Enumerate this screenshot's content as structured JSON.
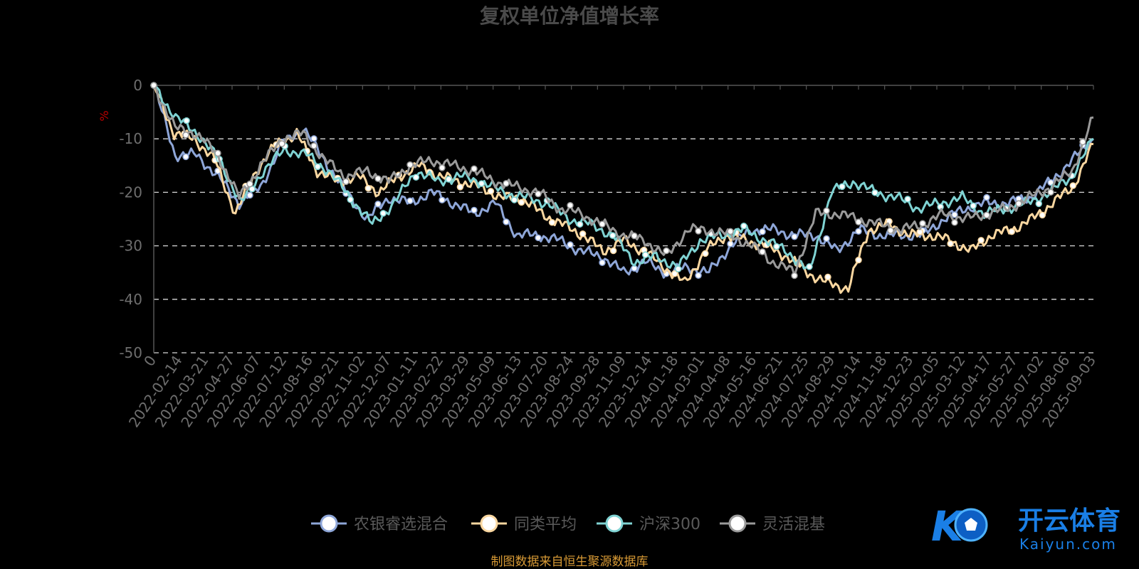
{
  "chart_data": {
    "type": "line",
    "title": "复权单位净值增长率",
    "ylabel": "%",
    "ylim": [
      -50,
      0
    ],
    "yticks": [
      0,
      -10,
      -20,
      -30,
      -40,
      -50
    ],
    "xticks": [
      "0",
      "2022-02-14",
      "2022-03-21",
      "2022-04-27",
      "2022-06-07",
      "2022-07-12",
      "2022-08-16",
      "2022-09-21",
      "2022-11-02",
      "2022-12-07",
      "2023-01-11",
      "2023-02-22",
      "2023-03-29",
      "2023-05-09",
      "2023-06-13",
      "2023-07-20",
      "2023-08-24",
      "2023-09-28",
      "2023-11-09",
      "2023-12-14",
      "2024-01-18",
      "2024-03-01",
      "2024-04-08",
      "2024-05-16",
      "2024-06-21",
      "2024-07-25",
      "2024-08-29",
      "2024-10-14",
      "2024-11-18",
      "2024-12-23",
      "2025-02-05",
      "2025-03-12",
      "2025-04-17",
      "2025-05-27",
      "2025-07-02",
      "2025-08-06",
      "2025-09-03"
    ],
    "grid": true,
    "legend_position": "bottom",
    "series": [
      {
        "name": "农银睿选混合",
        "color": "#8ea6d8",
        "values": [
          0,
          -13,
          -13,
          -17,
          -22,
          -19,
          -11,
          -8,
          -14,
          -20,
          -25,
          -21,
          -22,
          -20,
          -22,
          -24,
          -22,
          -28,
          -28,
          -29,
          -31,
          -32,
          -35,
          -33,
          -35,
          -34,
          -35,
          -30,
          -27,
          -27,
          -28,
          -28,
          -31,
          -27,
          -28,
          -28,
          -28,
          -25,
          -23,
          -22,
          -22,
          -21,
          -18,
          -14,
          -10
        ]
      },
      {
        "name": "同类平均",
        "color": "#fad7a0",
        "values": [
          0,
          -9,
          -10,
          -14,
          -24,
          -16,
          -11,
          -9,
          -16,
          -18,
          -17,
          -20,
          -17,
          -15,
          -17,
          -18,
          -19,
          -21,
          -21,
          -24,
          -26,
          -28,
          -31,
          -29,
          -31,
          -34,
          -37,
          -31,
          -28,
          -29,
          -30,
          -32,
          -35,
          -37,
          -38,
          -27,
          -26,
          -28,
          -28,
          -29,
          -31,
          -28,
          -27,
          -25,
          -22,
          -19,
          -11
        ]
      },
      {
        "name": "沪深300",
        "color": "#7fd3d3",
        "values": [
          0,
          -6,
          -9,
          -14,
          -22,
          -16,
          -12,
          -13,
          -16,
          -21,
          -26,
          -22,
          -16,
          -18,
          -17,
          -18,
          -20,
          -21,
          -22,
          -25,
          -26,
          -28,
          -33,
          -32,
          -34,
          -29,
          -28,
          -27,
          -29,
          -31,
          -35,
          -20,
          -18,
          -20,
          -21,
          -23,
          -22,
          -21,
          -24,
          -23,
          -22,
          -20,
          -17,
          -10
        ]
      },
      {
        "name": "灵活混基",
        "color": "#9a9a9a",
        "values": [
          0,
          -8,
          -9,
          -13,
          -21,
          -15,
          -10,
          -9,
          -14,
          -17,
          -16,
          -18,
          -15,
          -14,
          -15,
          -16,
          -18,
          -19,
          -20,
          -23,
          -24,
          -26,
          -28,
          -29,
          -32,
          -27,
          -27,
          -28,
          -30,
          -33,
          -35,
          -24,
          -24,
          -25,
          -26,
          -27,
          -26,
          -24,
          -25,
          -24,
          -23,
          -21,
          -19,
          -16,
          -6
        ]
      }
    ]
  },
  "source_note": "制图数据来自恒生聚源数据库",
  "watermark": {
    "mark": "K",
    "brand_cn": "开云体育",
    "brand_en": "Kaiyun.com"
  }
}
